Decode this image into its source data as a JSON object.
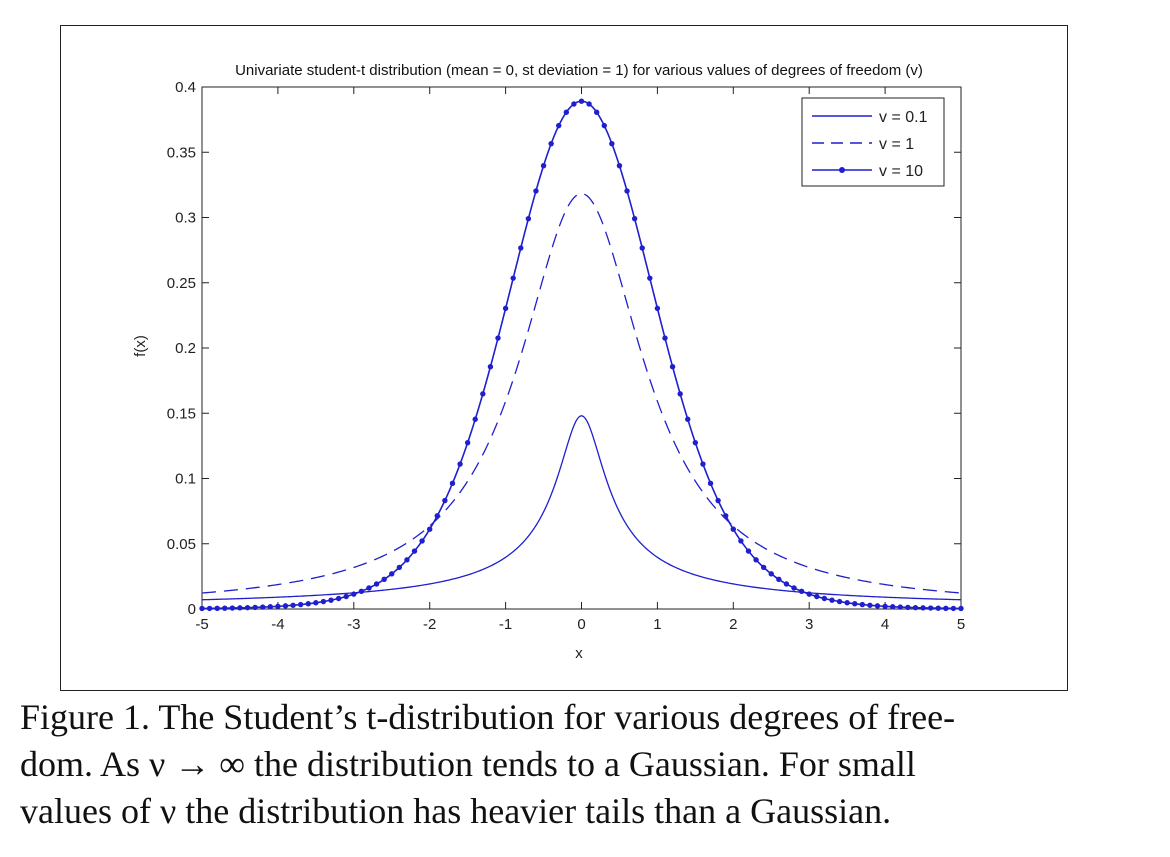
{
  "chart_data": {
    "type": "line",
    "title": "Univariate student-t distribution (mean = 0, st deviation = 1) for various values of degrees of freedom (v)",
    "xlabel": "x",
    "ylabel": "f(x)",
    "xlim": [
      -5,
      5
    ],
    "ylim": [
      0,
      0.4
    ],
    "xticks": [
      "-5",
      "-4",
      "-3",
      "-2",
      "-1",
      "0",
      "1",
      "2",
      "3",
      "4",
      "5"
    ],
    "yticks": [
      "0",
      "0.05",
      "0.1",
      "0.15",
      "0.2",
      "0.25",
      "0.3",
      "0.35",
      "0.4"
    ],
    "grid": false,
    "legend_position": "top-right",
    "series": [
      {
        "name": "v = 0.1",
        "nu": 0.1,
        "style": "solid",
        "marker": "none"
      },
      {
        "name": "v = 1",
        "nu": 1,
        "style": "dashed",
        "marker": "none"
      },
      {
        "name": "v = 10",
        "nu": 10,
        "style": "solid",
        "marker": "dot"
      }
    ],
    "color": "#1f1fd0"
  },
  "caption": {
    "line1": "Figure 1.  The Student’s t-distribution for various degrees of free-",
    "line2": "dom.  As ν → ∞ the distribution tends to a Gaussian.  For small",
    "line3": "values of ν the distribution has heavier tails than a Gaussian."
  }
}
